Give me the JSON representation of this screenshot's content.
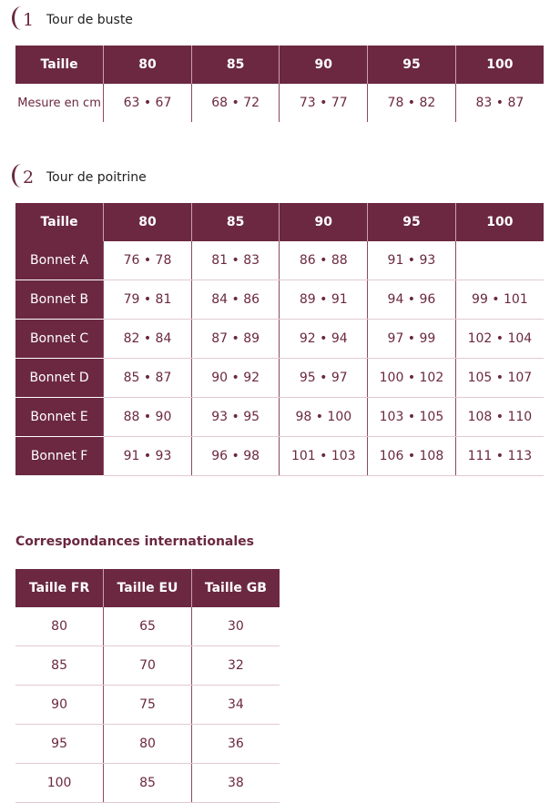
{
  "section1": {
    "number": "1",
    "title": "Tour de buste",
    "headers": [
      "Taille",
      "80",
      "85",
      "90",
      "95",
      "100"
    ],
    "rows": [
      {
        "label": "Mesure en cm",
        "values": [
          "63 • 67",
          "68 • 72",
          "73 • 77",
          "78 • 82",
          "83 • 87"
        ]
      }
    ]
  },
  "section2": {
    "number": "2",
    "title": "Tour de poitrine",
    "headers": [
      "Taille",
      "80",
      "85",
      "90",
      "95",
      "100"
    ],
    "rows": [
      {
        "label": "Bonnet A",
        "values": [
          "76 • 78",
          "81 • 83",
          "86 • 88",
          "91 • 93",
          ""
        ]
      },
      {
        "label": "Bonnet B",
        "values": [
          "79 • 81",
          "84 • 86",
          "89 • 91",
          "94 • 96",
          "99 • 101"
        ]
      },
      {
        "label": "Bonnet C",
        "values": [
          "82 • 84",
          "87 • 89",
          "92 • 94",
          "97 • 99",
          "102 • 104"
        ]
      },
      {
        "label": "Bonnet D",
        "values": [
          "85 • 87",
          "90 • 92",
          "95 • 97",
          "100 • 102",
          "105 • 107"
        ]
      },
      {
        "label": "Bonnet E",
        "values": [
          "88 • 90",
          "93 • 95",
          "98 • 100",
          "103 • 105",
          "108 • 110"
        ]
      },
      {
        "label": "Bonnet F",
        "values": [
          "91 • 93",
          "96 • 98",
          "101 • 103",
          "106 • 108",
          "111 • 113"
        ]
      }
    ]
  },
  "international": {
    "title": "Correspondances internationales",
    "headers": [
      "Taille FR",
      "Taille EU",
      "Taille GB"
    ],
    "rows": [
      [
        "80",
        "65",
        "30"
      ],
      [
        "85",
        "70",
        "32"
      ],
      [
        "90",
        "75",
        "34"
      ],
      [
        "95",
        "80",
        "36"
      ],
      [
        "100",
        "85",
        "38"
      ]
    ]
  },
  "colors": {
    "accent": "#6b2840"
  }
}
